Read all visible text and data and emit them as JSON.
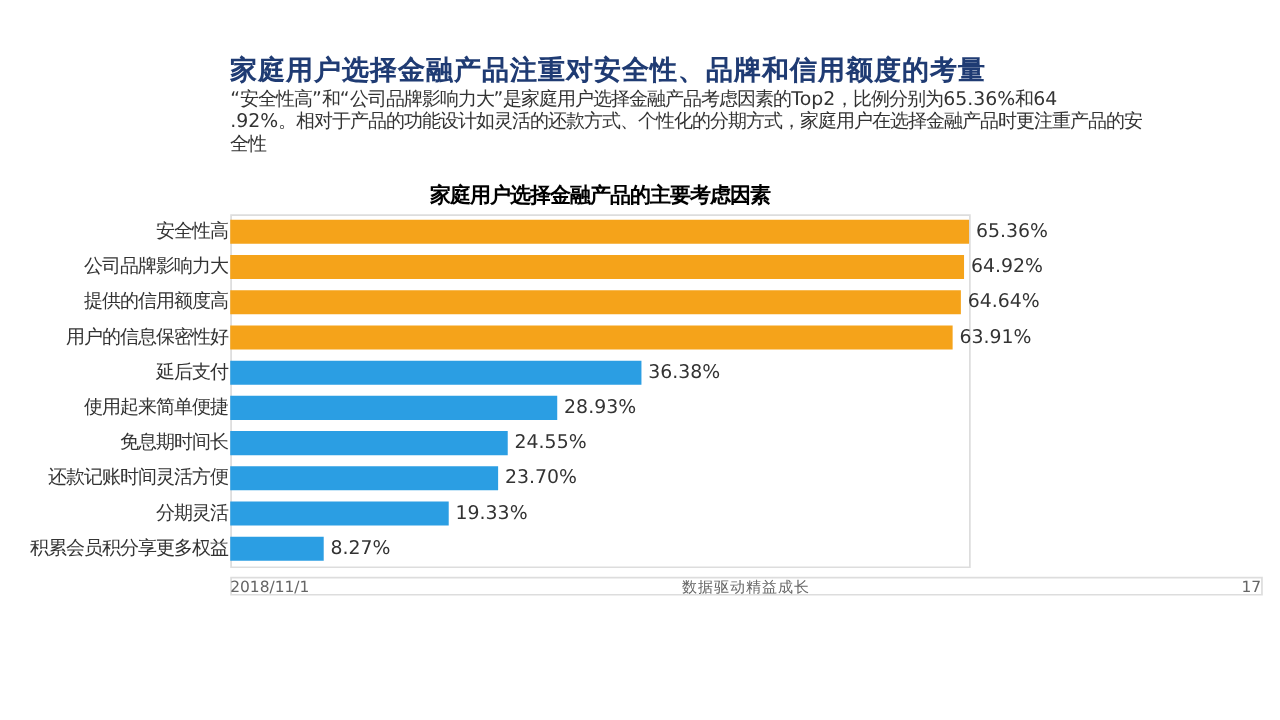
{
  "chart_data": {
    "type": "bar",
    "orientation": "horizontal",
    "title": "家庭用户选择金融产品注重对安全性、品牌和信用额度的考量",
    "subtitle": "“安全性高”和“公司品牌影响力大”是家庭用户选择金融产品考虑因素的Top2，比例分别为65.36%和64.92%。相对于产品的功能设计如灵活的还款方式、个性化的分期方式，家庭用户在选择金融产品时更注重产品的安全性",
    "categories": [
      "安全性高",
      "公司品牌影响力大",
      "提供的信用额度高",
      "用户的信息保密性好",
      "延后支付",
      "使用起来简单便捷",
      "免息期时间长",
      "还款记账时间灵活方便",
      "分期灵活",
      "积累会员积分享更多权益"
    ],
    "values": [
      65.36,
      64.92,
      64.64,
      63.91,
      36.38,
      28.93,
      24.55,
      23.7,
      19.33,
      8.27
    ],
    "value_labels": [
      "65.36%",
      "64.92%",
      "64.64%",
      "63.91%",
      "36.38%",
      "28.93%",
      "24.55%",
      "23.70%",
      "19.33%",
      "8.27%"
    ],
    "colors": [
      "#f5a31a",
      "#f5a31a",
      "#f5a31a",
      "#f5a31a",
      "#2b9ee3",
      "#2b9ee3",
      "#2b9ee3",
      "#2b9ee3",
      "#2b9ee3",
      "#2b9ee3"
    ],
    "annotations": [
      "家庭用户选择金融产品的主要考虑因素",
      "2018/11/1",
      "数据驱动精益成长",
      "17"
    ]
  }
}
